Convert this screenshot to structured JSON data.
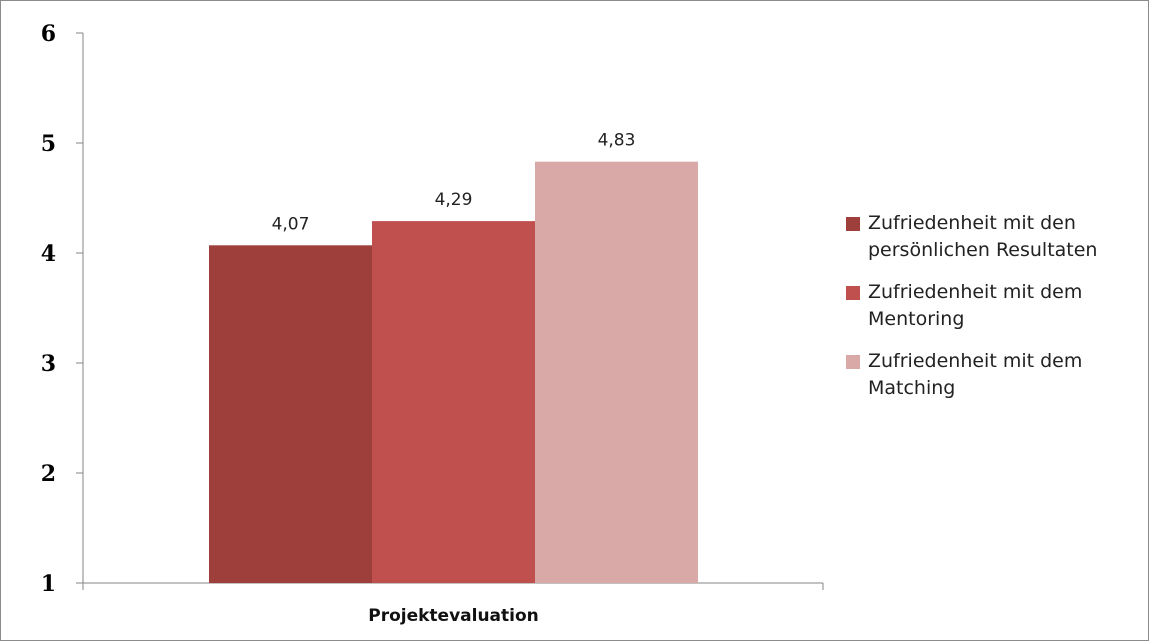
{
  "chart_data": {
    "type": "bar",
    "categories": [
      "Projektevaluation"
    ],
    "series": [
      {
        "name": "Zufriedenheit mit den persönlichen Resultaten",
        "values": [
          4.07
        ],
        "color": "#9e3f3c",
        "label": "4,07"
      },
      {
        "name": "Zufriedenheit mit dem Mentoring",
        "values": [
          4.29
        ],
        "color": "#c0504d",
        "label": "4,29"
      },
      {
        "name": "Zufriedenheit mit dem Matching",
        "values": [
          4.83
        ],
        "color": "#d9a9a8",
        "label": "4,83"
      }
    ],
    "yticks": [
      "1",
      "2",
      "3",
      "4",
      "5",
      "6"
    ],
    "ylim": [
      1,
      6
    ],
    "grid": false,
    "legend": "right"
  }
}
